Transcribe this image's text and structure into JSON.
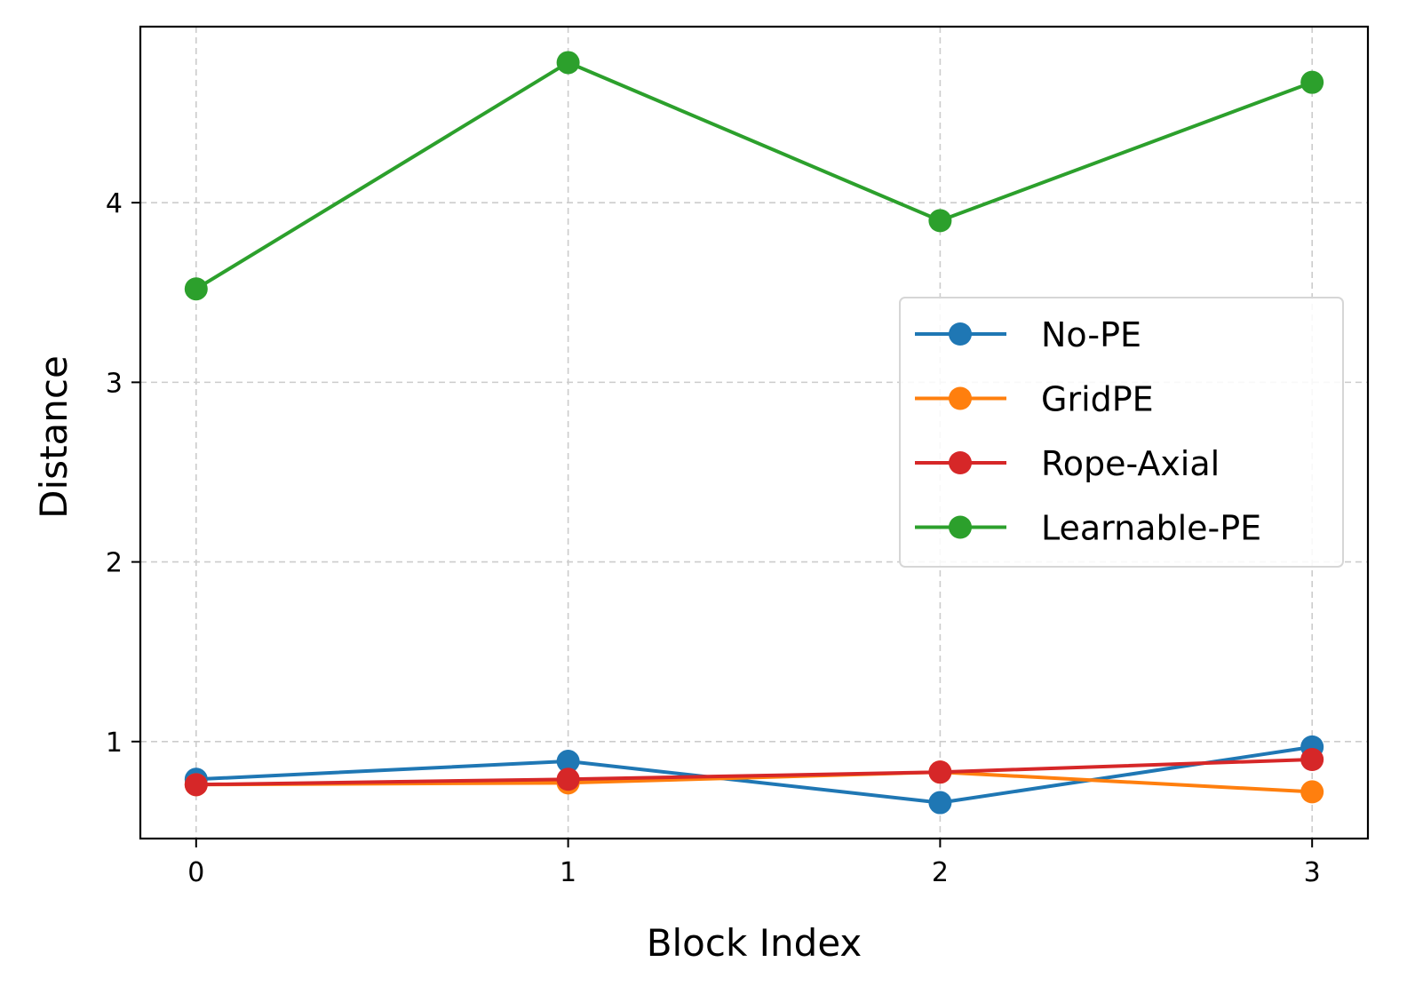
{
  "chart_data": {
    "type": "line",
    "title": "",
    "xlabel": "Block Index",
    "ylabel": "Distance",
    "x": [
      0,
      1,
      2,
      3
    ],
    "xticks": [
      0,
      1,
      2,
      3
    ],
    "xtick_labels": [
      "0",
      "1",
      "2",
      "3"
    ],
    "yticks": [
      1,
      2,
      3,
      4
    ],
    "ytick_labels": [
      "1",
      "2",
      "3",
      "4"
    ],
    "xlim": [
      -0.15,
      3.15
    ],
    "ylim": [
      0.46,
      4.98
    ],
    "grid": true,
    "legend_position": "center-right",
    "series": [
      {
        "name": "No-PE",
        "color": "#1f77b4",
        "values": [
          0.79,
          0.89,
          0.66,
          0.97
        ]
      },
      {
        "name": "GridPE",
        "color": "#ff7f0e",
        "values": [
          0.76,
          0.77,
          0.83,
          0.72
        ]
      },
      {
        "name": "Rope-Axial",
        "color": "#d62728",
        "values": [
          0.76,
          0.79,
          0.83,
          0.9
        ]
      },
      {
        "name": "Learnable-PE",
        "color": "#2ca02c",
        "values": [
          3.52,
          4.78,
          3.9,
          4.67
        ]
      }
    ]
  }
}
